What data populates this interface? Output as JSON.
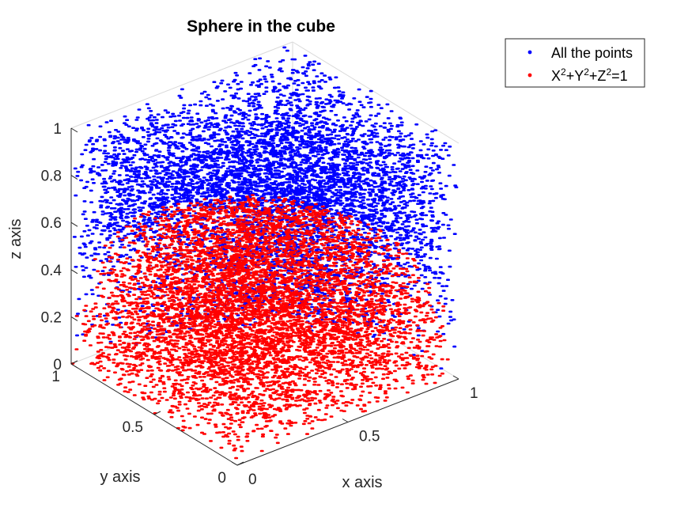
{
  "chart_data": {
    "type": "scatter",
    "title": "Sphere in the cube",
    "xlabel": "x axis",
    "ylabel": "y axis",
    "zlabel": "z axis",
    "xlim": [
      0,
      1
    ],
    "ylim": [
      0,
      1
    ],
    "zlim": [
      0,
      1
    ],
    "xticks": [
      {
        "value": 0,
        "label": "0"
      },
      {
        "value": 0.5,
        "label": "0.5"
      },
      {
        "value": 1,
        "label": "1"
      }
    ],
    "yticks": [
      {
        "value": 0,
        "label": "0"
      },
      {
        "value": 0.5,
        "label": "0.5"
      },
      {
        "value": 1,
        "label": "1"
      }
    ],
    "zticks": [
      {
        "value": 0,
        "label": "0"
      },
      {
        "value": 0.2,
        "label": "0.2"
      },
      {
        "value": 0.4,
        "label": "0.4"
      },
      {
        "value": 0.6,
        "label": "0.6"
      },
      {
        "value": 0.8,
        "label": "0.8"
      },
      {
        "value": 1,
        "label": "1"
      }
    ],
    "grid": false,
    "legend_position": "outside-top-right",
    "series": [
      {
        "name": "All the points",
        "color": "#0000ff",
        "marker": "dot",
        "region": "uniform in unit cube [0,1]^3"
      },
      {
        "name": "X^2+Y^2+Z^2=1",
        "color": "#ff0000",
        "marker": "dot",
        "region": "x^2+y^2+z^2<=1"
      }
    ],
    "legend": [
      {
        "text": "X",
        "sup": "2",
        "text2": "+Y",
        "sup2": "2",
        "text3": "+Z",
        "sup3": "2",
        "text4": "=1"
      }
    ]
  }
}
